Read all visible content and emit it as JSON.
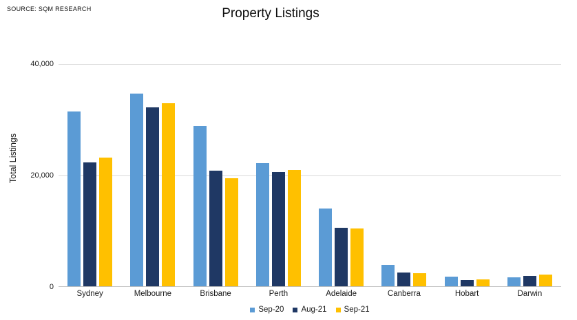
{
  "source": "SOURCE: SQM RESEARCH",
  "title": "Property Listings",
  "chart_data": {
    "type": "bar",
    "title": "Property Listings",
    "xlabel": "",
    "ylabel": "Total Listings",
    "ylim": [
      0,
      40000
    ],
    "grid": true,
    "legend_position": "bottom",
    "yticks": [
      {
        "value": 0,
        "label": "0"
      },
      {
        "value": 20000,
        "label": "20,000"
      },
      {
        "value": 40000,
        "label": "40,000"
      }
    ],
    "categories": [
      "Sydney",
      "Melbourne",
      "Brisbane",
      "Perth",
      "Adelaide",
      "Canberra",
      "Hobart",
      "Darwin"
    ],
    "series": [
      {
        "name": "Sep-20",
        "color": "#5B9BD5",
        "values": [
          31500,
          34700,
          28900,
          22200,
          14000,
          3900,
          1700,
          1600
        ]
      },
      {
        "name": "Aug-21",
        "color": "#1F3864",
        "values": [
          22300,
          32200,
          20800,
          20600,
          10500,
          2500,
          1100,
          1900
        ]
      },
      {
        "name": "Sep-21",
        "color": "#FFC000",
        "values": [
          23200,
          33000,
          19500,
          20900,
          10400,
          2300,
          1200,
          2100
        ]
      }
    ]
  }
}
